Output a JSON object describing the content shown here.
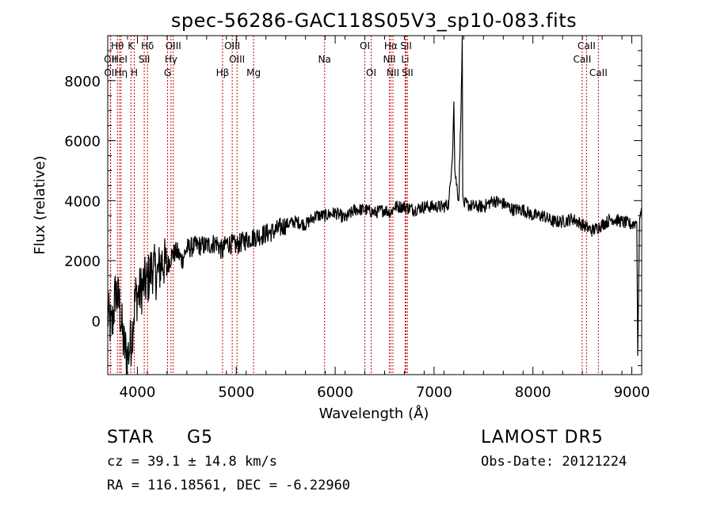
{
  "chart_data": {
    "type": "line",
    "title": "spec-56286-GAC118S05V3_sp10-083.fits",
    "xlabel": "Wavelength (Å)",
    "ylabel": "Flux (relative)",
    "xlim": [
      3700,
      9100
    ],
    "ylim": [
      -1800,
      9500
    ],
    "xticks": [
      4000,
      5000,
      6000,
      7000,
      8000,
      9000
    ],
    "yticks": [
      0,
      2000,
      4000,
      6000,
      8000
    ],
    "grid": false,
    "series": [
      {
        "x": [
          3700,
          3740,
          3780,
          3820,
          3860,
          3900,
          3940,
          3980,
          4020,
          4060,
          4100,
          4150,
          4200,
          4250,
          4300,
          4350,
          4400,
          4450,
          4500,
          4600,
          4700,
          4800,
          4860,
          4900,
          5000,
          5100,
          5200,
          5300,
          5400,
          5500,
          5600,
          5700,
          5800,
          5900,
          6000,
          6100,
          6200,
          6300,
          6400,
          6500,
          6560,
          6600,
          6700,
          6800,
          6900,
          7000,
          7100,
          7150,
          7190,
          7200,
          7210,
          7250,
          7280,
          7285,
          7290,
          7300,
          7400,
          7500,
          7600,
          7700,
          7800,
          7900,
          8000,
          8100,
          8200,
          8300,
          8400,
          8500,
          8600,
          8700,
          8800,
          8900,
          9000,
          9050,
          9060,
          9080,
          9100
        ],
        "y": [
          200,
          -300,
          1000,
          500,
          -800,
          -1200,
          -600,
          800,
          900,
          1200,
          1300,
          1800,
          1500,
          2000,
          1800,
          2200,
          2300,
          2000,
          2400,
          2500,
          2500,
          2600,
          2300,
          2600,
          2500,
          2700,
          2800,
          2900,
          3000,
          3200,
          3300,
          3200,
          3500,
          3500,
          3600,
          3400,
          3700,
          3700,
          3600,
          3700,
          3600,
          3800,
          3800,
          3700,
          3800,
          3800,
          3800,
          3900,
          5800,
          7300,
          5000,
          4000,
          8200,
          9500,
          4200,
          3900,
          3800,
          3800,
          4000,
          3900,
          3700,
          3700,
          3500,
          3500,
          3300,
          3300,
          3400,
          3200,
          3000,
          3200,
          3400,
          3300,
          3200,
          3300,
          -1000,
          3600,
          3500
        ]
      }
    ],
    "line_markers": [
      {
        "label": "Hθ",
        "x": 3798,
        "row": 0
      },
      {
        "label": "OII",
        "x": 3727,
        "row": 1
      },
      {
        "label": "OII",
        "x": 3729,
        "row": 2
      },
      {
        "label": "HeI",
        "x": 3820,
        "row": 1
      },
      {
        "label": "Hη",
        "x": 3835,
        "row": 2
      },
      {
        "label": "K",
        "x": 3934,
        "row": 0
      },
      {
        "label": "H",
        "x": 3969,
        "row": 2
      },
      {
        "label": "SII",
        "x": 4069,
        "row": 1
      },
      {
        "label": "Hδ",
        "x": 4102,
        "row": 0
      },
      {
        "label": "OIII",
        "x": 4363,
        "row": 0
      },
      {
        "label": "Hγ",
        "x": 4340,
        "row": 1
      },
      {
        "label": "G",
        "x": 4305,
        "row": 2
      },
      {
        "label": "Hβ",
        "x": 4861,
        "row": 2
      },
      {
        "label": "OIII",
        "x": 4959,
        "row": 0
      },
      {
        "label": "OIII",
        "x": 5007,
        "row": 1
      },
      {
        "label": "Mg",
        "x": 5175,
        "row": 2
      },
      {
        "label": "Na",
        "x": 5893,
        "row": 1
      },
      {
        "label": "OI",
        "x": 6300,
        "row": 0
      },
      {
        "label": "OI",
        "x": 6364,
        "row": 2
      },
      {
        "label": "Hα",
        "x": 6563,
        "row": 0
      },
      {
        "label": "NII",
        "x": 6548,
        "row": 1
      },
      {
        "label": "NII",
        "x": 6584,
        "row": 2
      },
      {
        "label": "SII",
        "x": 6717,
        "row": 0
      },
      {
        "label": "Li",
        "x": 6708,
        "row": 1
      },
      {
        "label": "SII",
        "x": 6731,
        "row": 2
      },
      {
        "label": "CaII",
        "x": 8542,
        "row": 0
      },
      {
        "label": "CaII",
        "x": 8498,
        "row": 1
      },
      {
        "label": "CaII",
        "x": 8662,
        "row": 2
      }
    ]
  },
  "info": {
    "object_class": "STAR",
    "subclass": "G5",
    "survey": "LAMOST DR5",
    "redshift_text": "cz = 39.1 ± 14.8 km/s",
    "obs_date_text": "Obs-Date: 20121224",
    "coords_text": "RA = 116.18561, DEC =  -6.22960"
  },
  "colors": {
    "spectrum": "#000000",
    "marker_line": "#cc0000",
    "background": "#ffffff"
  }
}
